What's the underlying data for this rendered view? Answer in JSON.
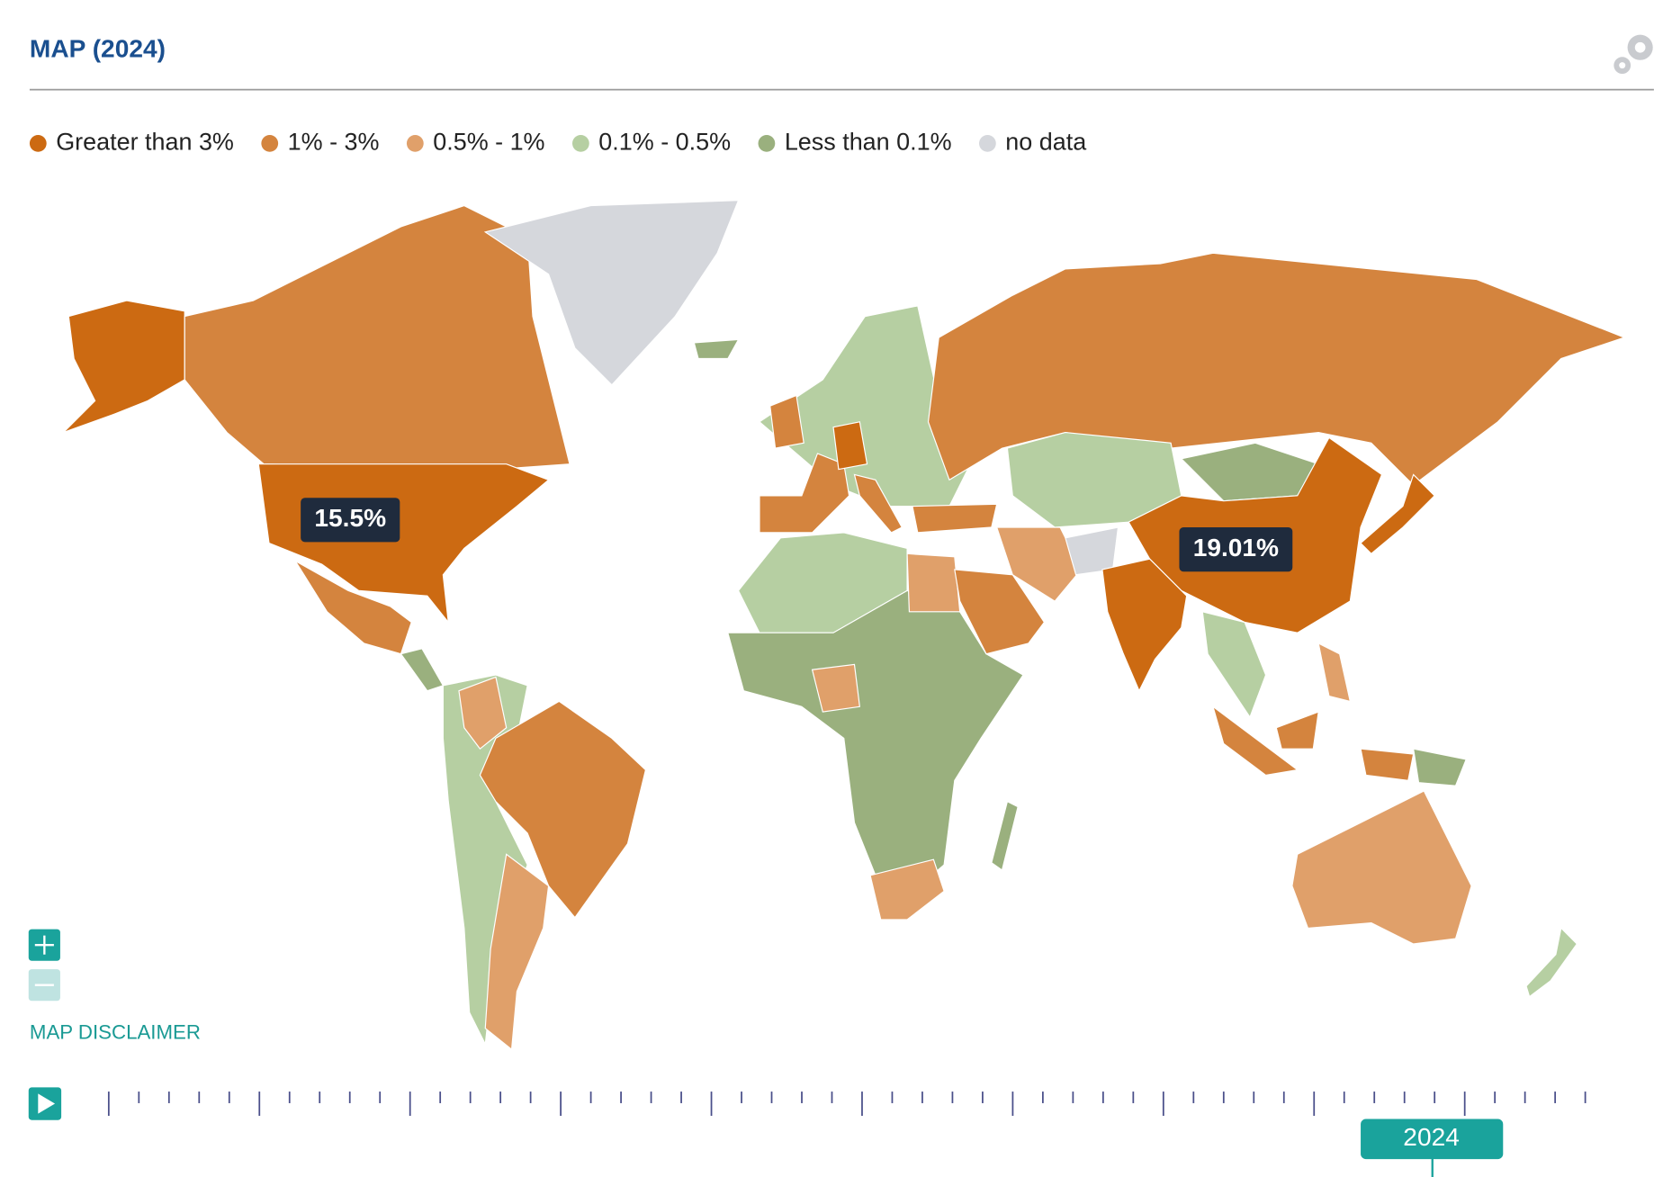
{
  "header": {
    "title": "MAP (2024)"
  },
  "legend": [
    {
      "label": "Greater than 3%",
      "color": "#cc6a12"
    },
    {
      "label": "1% - 3%",
      "color": "#d4843e"
    },
    {
      "label": "0.5% - 1%",
      "color": "#e0a06a"
    },
    {
      "label": "0.1% - 0.5%",
      "color": "#b6cfa2"
    },
    {
      "label": "Less than 0.1%",
      "color": "#9ab07e"
    },
    {
      "label": "no data",
      "color": "#d5d7dc"
    }
  ],
  "callouts": [
    {
      "label": "15.5%"
    },
    {
      "label": "19.01%"
    }
  ],
  "controls": {
    "disclaimer": "MAP DISCLAIMER",
    "year": "2024"
  }
}
